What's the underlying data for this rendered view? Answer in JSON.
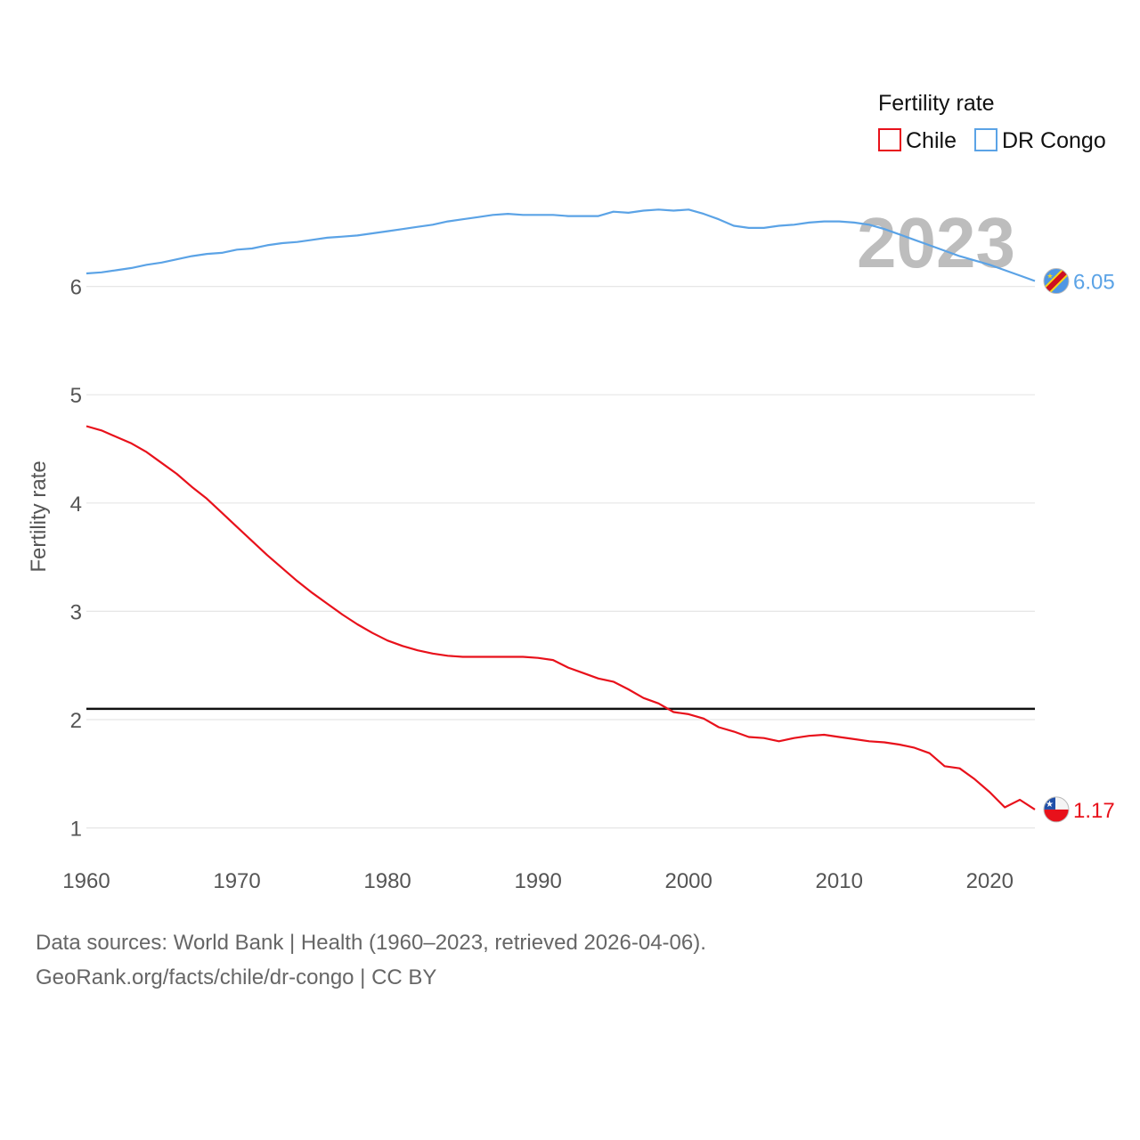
{
  "chart_data": {
    "type": "line",
    "title": "",
    "ylabel": "Fertility rate",
    "xlabel": "",
    "xlim": [
      1960,
      2023
    ],
    "ylim": [
      0.75,
      7.0
    ],
    "x_ticks": [
      "1960",
      "1970",
      "1980",
      "1990",
      "2000",
      "2010",
      "2020"
    ],
    "y_ticks": [
      "1",
      "2",
      "3",
      "4",
      "5",
      "6"
    ],
    "reference_line": {
      "value": 2.1,
      "color": "#111111"
    },
    "current_year": "2023",
    "legend": {
      "title": "Fertility rate",
      "position": "top-right"
    },
    "series": [
      {
        "name": "Chile",
        "color": "#e8111b",
        "end_label": "1.17",
        "flag": "chile-flag-icon",
        "x": [
          1960,
          1961,
          1962,
          1963,
          1964,
          1965,
          1966,
          1967,
          1968,
          1969,
          1970,
          1971,
          1972,
          1973,
          1974,
          1975,
          1976,
          1977,
          1978,
          1979,
          1980,
          1981,
          1982,
          1983,
          1984,
          1985,
          1986,
          1987,
          1988,
          1989,
          1990,
          1991,
          1992,
          1993,
          1994,
          1995,
          1996,
          1997,
          1998,
          1999,
          2000,
          2001,
          2002,
          2003,
          2004,
          2005,
          2006,
          2007,
          2008,
          2009,
          2010,
          2011,
          2012,
          2013,
          2014,
          2015,
          2016,
          2017,
          2018,
          2019,
          2020,
          2021,
          2022,
          2023
        ],
        "values": [
          4.71,
          4.67,
          4.61,
          4.55,
          4.47,
          4.37,
          4.27,
          4.15,
          4.04,
          3.91,
          3.78,
          3.65,
          3.52,
          3.4,
          3.28,
          3.17,
          3.07,
          2.97,
          2.88,
          2.8,
          2.73,
          2.68,
          2.64,
          2.61,
          2.59,
          2.58,
          2.58,
          2.58,
          2.58,
          2.58,
          2.57,
          2.55,
          2.48,
          2.43,
          2.38,
          2.35,
          2.28,
          2.2,
          2.15,
          2.07,
          2.05,
          2.01,
          1.93,
          1.89,
          1.84,
          1.83,
          1.8,
          1.83,
          1.85,
          1.86,
          1.84,
          1.82,
          1.8,
          1.79,
          1.77,
          1.74,
          1.69,
          1.57,
          1.55,
          1.45,
          1.33,
          1.19,
          1.26,
          1.17
        ]
      },
      {
        "name": "DR Congo",
        "color": "#5ba3e6",
        "end_label": "6.05",
        "flag": "dr-congo-flag-icon",
        "x": [
          1960,
          1961,
          1962,
          1963,
          1964,
          1965,
          1966,
          1967,
          1968,
          1969,
          1970,
          1971,
          1972,
          1973,
          1974,
          1975,
          1976,
          1977,
          1978,
          1979,
          1980,
          1981,
          1982,
          1983,
          1984,
          1985,
          1986,
          1987,
          1988,
          1989,
          1990,
          1991,
          1992,
          1993,
          1994,
          1995,
          1996,
          1997,
          1998,
          1999,
          2000,
          2001,
          2002,
          2003,
          2004,
          2005,
          2006,
          2007,
          2008,
          2009,
          2010,
          2011,
          2012,
          2013,
          2014,
          2015,
          2016,
          2017,
          2018,
          2019,
          2020,
          2021,
          2022,
          2023
        ],
        "values": [
          6.12,
          6.13,
          6.15,
          6.17,
          6.2,
          6.22,
          6.25,
          6.28,
          6.3,
          6.31,
          6.34,
          6.35,
          6.38,
          6.4,
          6.41,
          6.43,
          6.45,
          6.46,
          6.47,
          6.49,
          6.51,
          6.53,
          6.55,
          6.57,
          6.6,
          6.62,
          6.64,
          6.66,
          6.67,
          6.66,
          6.66,
          6.66,
          6.65,
          6.65,
          6.65,
          6.69,
          6.68,
          6.7,
          6.71,
          6.7,
          6.71,
          6.67,
          6.62,
          6.56,
          6.54,
          6.54,
          6.56,
          6.57,
          6.59,
          6.6,
          6.6,
          6.59,
          6.57,
          6.53,
          6.48,
          6.43,
          6.38,
          6.33,
          6.28,
          6.24,
          6.2,
          6.15,
          6.1,
          6.05
        ]
      }
    ]
  },
  "footer": {
    "sources": "Data sources: World Bank | Health (1960–2023, retrieved 2026-04-06).",
    "attribution": "GeoRank.org/facts/chile/dr-congo | CC BY"
  }
}
